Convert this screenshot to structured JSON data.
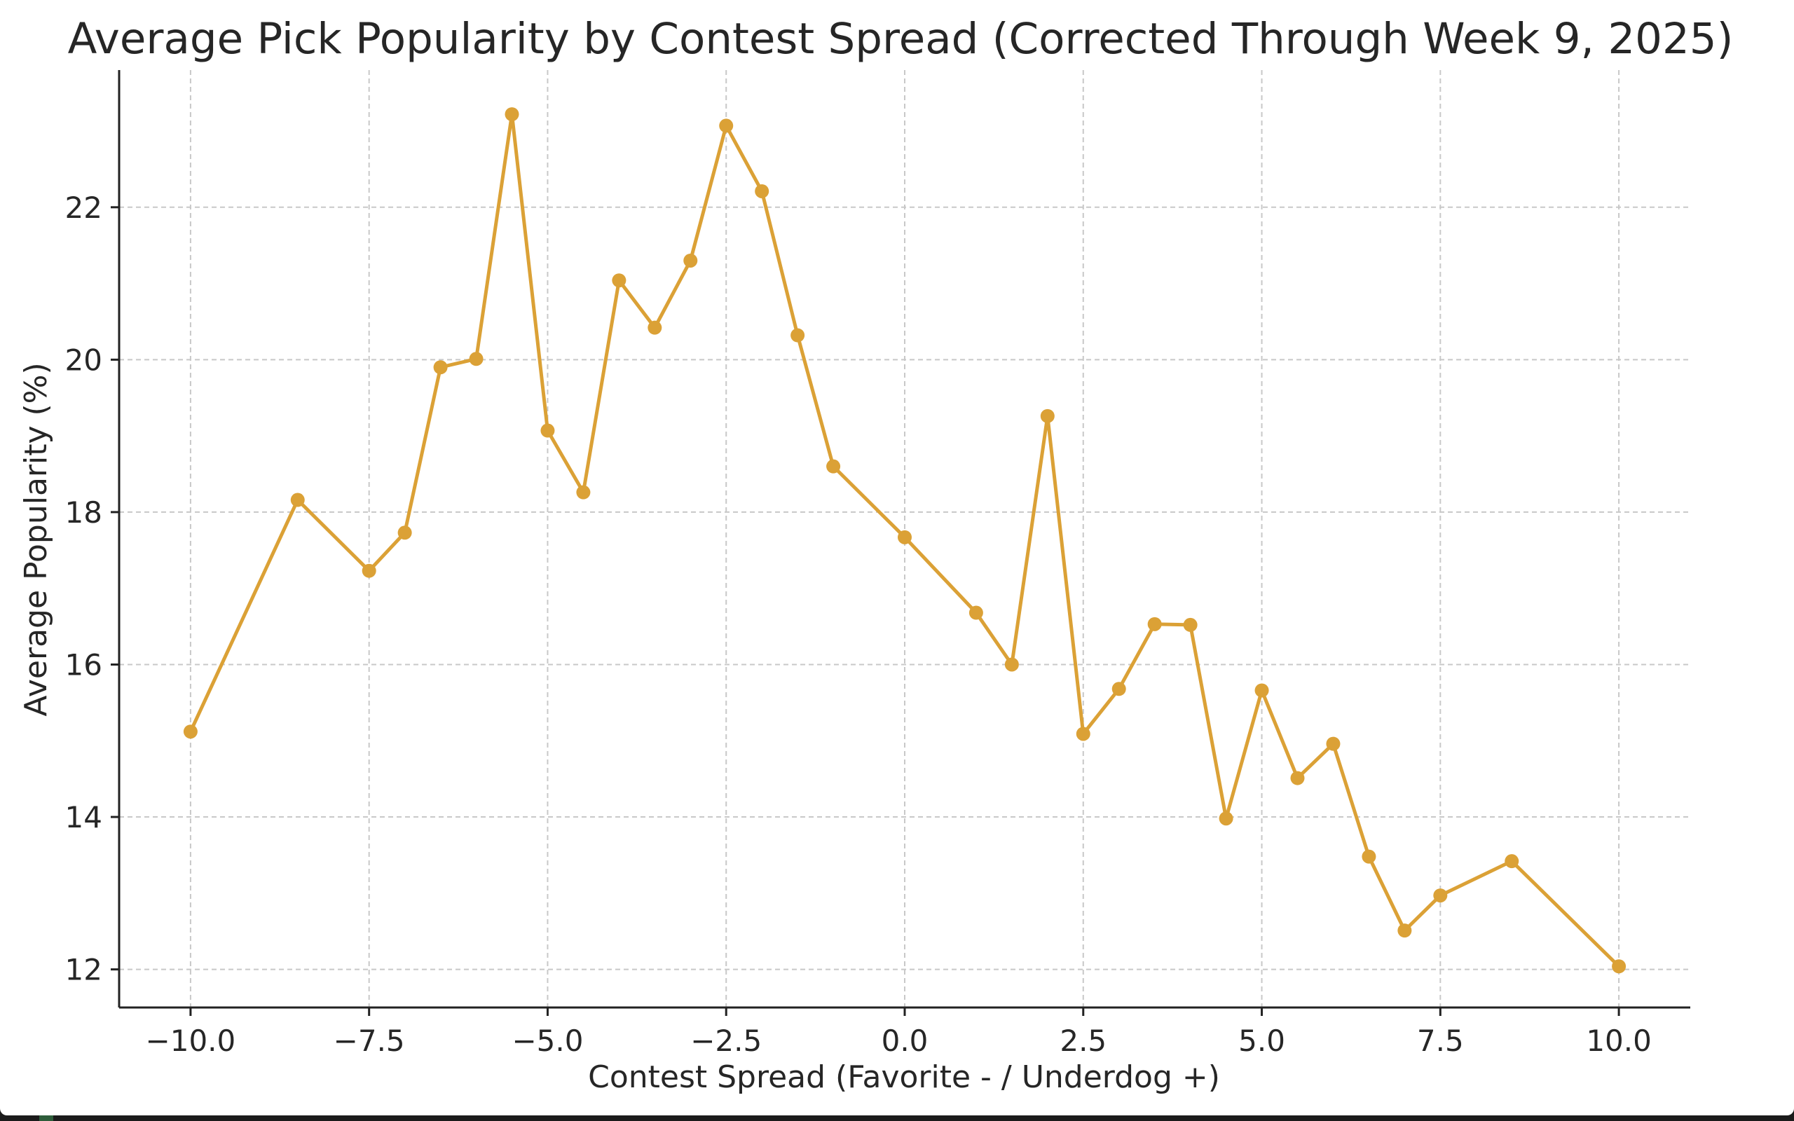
{
  "chart_data": {
    "type": "line",
    "title": "Average Pick Popularity by Contest Spread (Corrected Through Week 9, 2025)",
    "xlabel": "Contest Spread (Favorite - / Underdog +)",
    "ylabel": "Average Popularity (%)",
    "xlim": [
      -11.0,
      11.0
    ],
    "ylim": [
      11.5,
      23.8
    ],
    "xticks": [
      -10.0,
      -7.5,
      -5.0,
      -2.5,
      0.0,
      2.5,
      5.0,
      7.5,
      10.0
    ],
    "xtick_labels": [
      "−10.0",
      "−7.5",
      "−5.0",
      "−2.5",
      "0.0",
      "2.5",
      "5.0",
      "7.5",
      "10.0"
    ],
    "yticks": [
      12,
      14,
      16,
      18,
      20,
      22
    ],
    "ytick_labels": [
      "12",
      "14",
      "16",
      "18",
      "20",
      "22"
    ],
    "grid": true,
    "color": "#dba136",
    "series": [
      {
        "x": [
          -10.0,
          -8.5,
          -7.5,
          -7.0,
          -6.5,
          -6.0,
          -5.5,
          -5.0,
          -4.5,
          -4.0,
          -3.5,
          -3.0,
          -2.5,
          -2.0,
          -1.5,
          -1.0,
          0.0,
          1.0,
          1.5,
          2.0,
          2.5,
          3.0,
          3.5,
          4.0,
          4.5,
          5.0,
          5.5,
          6.0,
          6.5,
          7.0,
          7.5,
          8.5,
          10.0
        ],
        "values": [
          15.12,
          18.16,
          17.23,
          17.73,
          19.9,
          20.01,
          23.22,
          19.07,
          18.26,
          21.04,
          20.42,
          21.3,
          23.07,
          22.21,
          20.32,
          18.6,
          17.67,
          16.68,
          16.0,
          19.26,
          15.09,
          15.68,
          16.53,
          16.52,
          13.98,
          15.66,
          14.51,
          14.96,
          13.48,
          12.51,
          12.97,
          13.42,
          12.04
        ]
      }
    ]
  }
}
